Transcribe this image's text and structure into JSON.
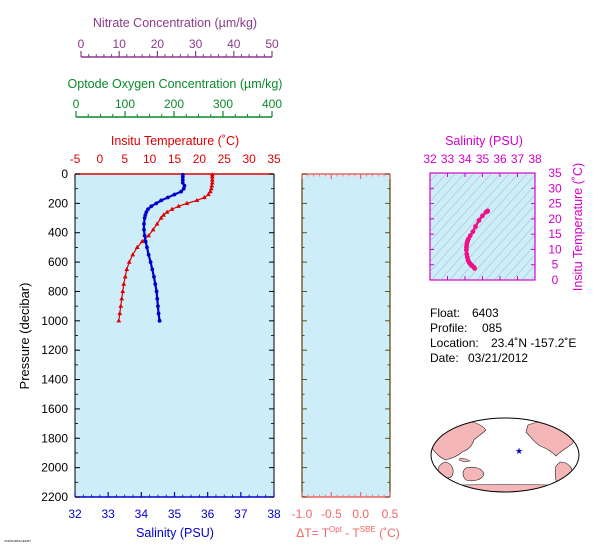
{
  "colors": {
    "nitrate": "#8b3a8b",
    "oxygen": "#0a8a2a",
    "temperature": "#dd0000",
    "salinity": "#0000cc",
    "ts_panel": "#d400c8",
    "delta": "#ee6666",
    "panel_bg": "#cdeef8",
    "dark_axis": "#554400",
    "land": "#f4b6b6"
  },
  "chart_data": [
    {
      "type": "line",
      "panel": "profile",
      "top_axes": [
        {
          "label": "Nitrate Concentration (µm/kg)",
          "ticks": [
            "0",
            "10",
            "20",
            "30",
            "40",
            "50"
          ],
          "range": [
            0,
            50
          ]
        },
        {
          "label": "Optode Oxygen Concentration (µm/kg)",
          "ticks": [
            "0",
            "100",
            "200",
            "300",
            "400"
          ],
          "range": [
            0,
            400
          ]
        },
        {
          "label": "Insitu Temperature (˚C)",
          "ticks": [
            "-5",
            "0",
            "5",
            "10",
            "15",
            "20",
            "25",
            "30",
            "35"
          ],
          "range": [
            -5,
            35
          ]
        }
      ],
      "xlabel": "Salinity (PSU)",
      "xticks": [
        "32",
        "33",
        "34",
        "35",
        "36",
        "37",
        "38"
      ],
      "xlim": [
        32,
        38
      ],
      "ylabel": "Pressure (decibar)",
      "yticks": [
        "0",
        "200",
        "400",
        "600",
        "800",
        "1000",
        "1200",
        "1400",
        "1600",
        "1800",
        "2000",
        "2200"
      ],
      "ylim": [
        2200,
        0
      ],
      "series": [
        {
          "key": "temperature",
          "axis": "temperature",
          "pressure": [
            5,
            20,
            40,
            60,
            80,
            100,
            120,
            140,
            160,
            180,
            200,
            220,
            240,
            260,
            280,
            300,
            340,
            380,
            420,
            460,
            500,
            550,
            600,
            650,
            700,
            750,
            800,
            850,
            900,
            950,
            1000
          ],
          "values": [
            22.6,
            22.6,
            22.6,
            22.6,
            22.5,
            22.4,
            22.2,
            21.8,
            21.0,
            19.5,
            17.5,
            15.8,
            14.5,
            13.5,
            12.8,
            12.3,
            11.5,
            10.7,
            9.8,
            8.5,
            7.5,
            6.6,
            5.9,
            5.4,
            5.1,
            4.8,
            4.6,
            4.4,
            4.2,
            4.0,
            3.8
          ]
        },
        {
          "key": "salinity",
          "axis": "salinity",
          "pressure": [
            5,
            20,
            40,
            60,
            80,
            100,
            120,
            140,
            160,
            180,
            200,
            220,
            240,
            260,
            280,
            300,
            340,
            380,
            420,
            460,
            500,
            550,
            600,
            650,
            700,
            750,
            800,
            850,
            900,
            950,
            1000
          ],
          "values": [
            35.25,
            35.25,
            35.25,
            35.25,
            35.3,
            35.28,
            35.2,
            35.0,
            34.8,
            34.6,
            34.45,
            34.3,
            34.2,
            34.15,
            34.12,
            34.1,
            34.08,
            34.08,
            34.1,
            34.13,
            34.17,
            34.22,
            34.28,
            34.33,
            34.38,
            34.42,
            34.46,
            34.48,
            34.5,
            34.52,
            34.55
          ]
        }
      ]
    },
    {
      "type": "line",
      "panel": "delta",
      "xlabel": "ΔT= T",
      "xlabel_sup1": "Opt",
      "xlabel_mid": " - T",
      "xlabel_sup2": "SBE",
      "xlabel_unit": " (˚C)",
      "xticks": [
        "-1.0",
        "-0.5",
        "0.0",
        "0.5"
      ],
      "xlim": [
        -1.0,
        0.5
      ],
      "ylim": [
        2200,
        0
      ]
    },
    {
      "type": "scatter",
      "panel": "ts",
      "title": "Salinity (PSU)",
      "xticks": [
        "32",
        "33",
        "34",
        "35",
        "36",
        "37",
        "38"
      ],
      "xlim": [
        32,
        38
      ],
      "ylabel": "Insitu Temperature (˚C)",
      "yticks": [
        "0",
        "5",
        "10",
        "15",
        "20",
        "25",
        "30",
        "35"
      ],
      "ylim": [
        0,
        35
      ],
      "points": [
        [
          35.3,
          22.6
        ],
        [
          35.28,
          22.4
        ],
        [
          35.2,
          22.2
        ],
        [
          35.0,
          21.0
        ],
        [
          34.8,
          19.5
        ],
        [
          34.6,
          17.5
        ],
        [
          34.45,
          15.8
        ],
        [
          34.3,
          14.5
        ],
        [
          34.2,
          13.5
        ],
        [
          34.15,
          12.8
        ],
        [
          34.12,
          12.3
        ],
        [
          34.1,
          11.5
        ],
        [
          34.08,
          10.7
        ],
        [
          34.08,
          9.8
        ],
        [
          34.1,
          8.5
        ],
        [
          34.13,
          7.5
        ],
        [
          34.17,
          6.6
        ],
        [
          34.22,
          5.9
        ],
        [
          34.28,
          5.4
        ],
        [
          34.33,
          5.1
        ],
        [
          34.38,
          4.8
        ],
        [
          34.42,
          4.6
        ],
        [
          34.5,
          4.2
        ],
        [
          34.55,
          3.8
        ]
      ]
    }
  ],
  "info": {
    "float_label": "Float:",
    "float_value": "6403",
    "profile_label": "Profile:",
    "profile_value": "085",
    "location_label": "Location:",
    "location_value": "23.4˚N  -157.2˚E",
    "date_label": "Date:",
    "date_value": "03/21/2012"
  },
  "map": {
    "marker_lat": 23.4,
    "marker_lon": -157.2
  },
  "footer_code": "7040SURFACEFMT"
}
